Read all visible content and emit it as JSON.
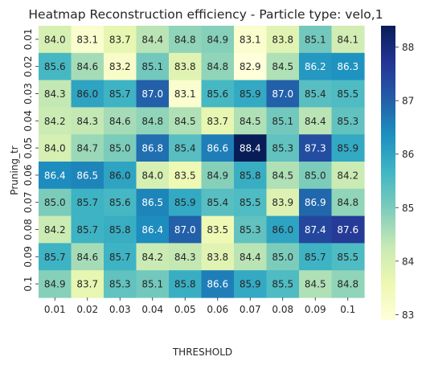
{
  "chart_data": {
    "type": "heatmap",
    "title": "Heatmap Reconstruction efficiency -  Particle type: velo,1",
    "xlabel": "THRESHOLD",
    "ylabel": "Pruning_tr",
    "x_categories": [
      "0.01",
      "0.02",
      "0.03",
      "0.04",
      "0.05",
      "0.06",
      "0.07",
      "0.08",
      "0.09",
      "0.1"
    ],
    "y_categories": [
      "0.01",
      "0.02",
      "0.03",
      "0.04",
      "0.05",
      "0.06",
      "0.07",
      "0.08",
      "0.09",
      "0.1"
    ],
    "values": [
      [
        84.0,
        83.1,
        83.7,
        84.4,
        84.8,
        84.9,
        83.1,
        83.8,
        85.1,
        84.1
      ],
      [
        85.6,
        84.6,
        83.2,
        85.1,
        83.8,
        84.8,
        82.9,
        84.5,
        86.2,
        86.3
      ],
      [
        84.3,
        86.0,
        85.7,
        87.0,
        83.1,
        85.6,
        85.9,
        87.0,
        85.4,
        85.5
      ],
      [
        84.2,
        84.3,
        84.6,
        84.8,
        84.5,
        83.7,
        84.5,
        85.1,
        84.4,
        85.3
      ],
      [
        84.0,
        84.7,
        85.0,
        86.8,
        85.4,
        86.6,
        88.4,
        85.3,
        87.3,
        85.9
      ],
      [
        86.4,
        86.5,
        86.0,
        84.0,
        83.5,
        84.9,
        85.8,
        84.5,
        85.0,
        84.2
      ],
      [
        85.0,
        85.7,
        85.6,
        86.5,
        85.9,
        85.4,
        85.5,
        83.9,
        86.9,
        84.8
      ],
      [
        84.2,
        85.7,
        85.8,
        86.4,
        87.0,
        83.5,
        85.3,
        86.0,
        87.4,
        87.6
      ],
      [
        85.7,
        84.6,
        85.7,
        84.2,
        84.3,
        83.8,
        84.4,
        85.0,
        85.7,
        85.5
      ],
      [
        84.9,
        83.7,
        85.3,
        85.1,
        85.8,
        86.6,
        85.9,
        85.5,
        84.5,
        84.8
      ]
    ],
    "value_format_decimals": 1,
    "colormap": "YlGnBu",
    "color_range": [
      82.9,
      88.4
    ],
    "colorbar_ticks": [
      83,
      84,
      85,
      86,
      87,
      88
    ],
    "colorbar_tick_labels": [
      "83",
      "84",
      "85",
      "86",
      "87",
      "88"
    ],
    "colorbar_position": "right",
    "grid": false
  }
}
